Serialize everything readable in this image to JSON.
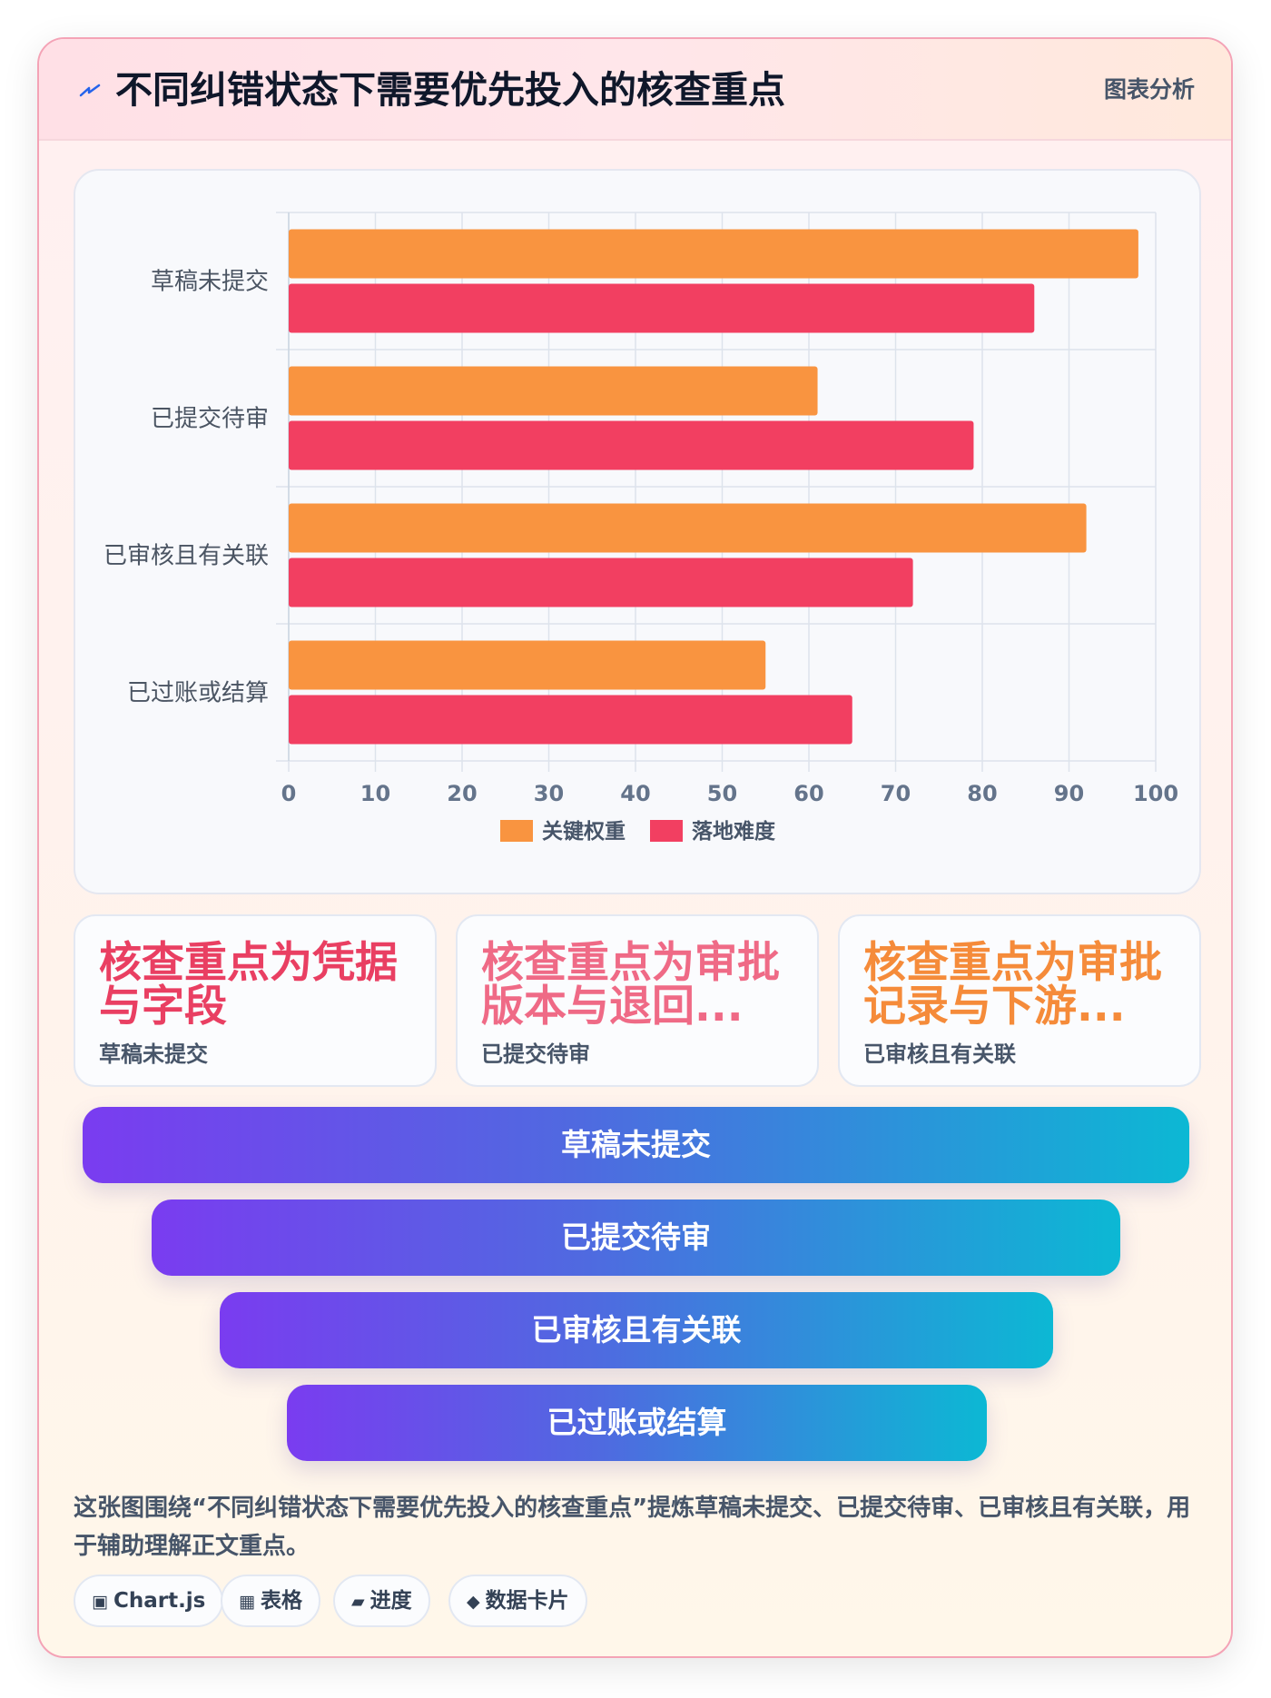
{
  "header": {
    "title": "不同纠错状态下需要优先投入的核查重点",
    "tag": "图表分析",
    "bolt_color": "#2563eb"
  },
  "chart_data": {
    "type": "bar",
    "orientation": "horizontal",
    "categories": [
      "草稿未提交",
      "已提交待审",
      "已审核且有关联",
      "已过账或结算"
    ],
    "series": [
      {
        "name": "关键权重",
        "values": [
          98,
          61,
          92,
          55
        ],
        "color": "#f99440"
      },
      {
        "name": "落地难度",
        "values": [
          86,
          79,
          72,
          65
        ],
        "color": "#f23f61"
      }
    ],
    "xlim": [
      0,
      100
    ],
    "ticks": [
      0,
      10,
      20,
      30,
      40,
      50,
      60,
      70,
      80,
      90,
      100
    ],
    "grid": true,
    "legend": "bottom"
  },
  "cards": [
    {
      "big": "核查重点为凭据与字段",
      "small": "草稿未提交",
      "color": "#e93f62"
    },
    {
      "big": "核查重点为审批版本与退回...",
      "small": "已提交待审",
      "color": "#ef6a86"
    },
    {
      "big": "核查重点为审批记录与下游...",
      "small": "已审核且有关联",
      "color": "#f58b3a"
    }
  ],
  "funnel": [
    "草稿未提交",
    "已提交待审",
    "已审核且有关联",
    "已过账或结算"
  ],
  "description": "这张图围绕“不同纠错状态下需要优先投入的核查重点”提炼草稿未提交、已提交待审、已审核且有关联，用于辅助理解正文重点。",
  "pills": [
    {
      "icon": "▣",
      "icon_name": "chart-icon",
      "label": "Chart.js"
    },
    {
      "icon": "▦",
      "icon_name": "table-icon",
      "label": "表格"
    },
    {
      "icon": "▰",
      "icon_name": "progress-icon",
      "label": "进度"
    },
    {
      "icon": "◆",
      "icon_name": "data-card-icon",
      "label": "数据卡片"
    }
  ]
}
